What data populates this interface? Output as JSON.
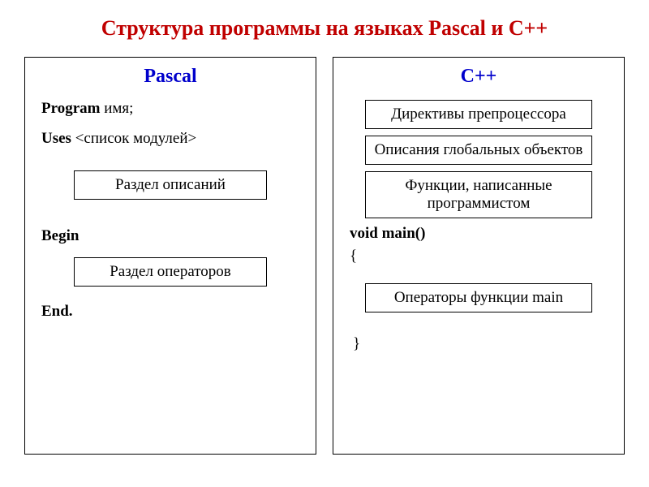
{
  "title": {
    "text": "Структура программы на языках Pascal и С++",
    "color": "#c00000"
  },
  "pascal": {
    "heading": "Pascal",
    "heading_color": "#0000cc",
    "line1_bold": "Program",
    "line1_rest": " имя;",
    "line2_bold": "Uses",
    "line2_rest": " <список модулей>",
    "box1": "Раздел описаний",
    "begin": "Begin",
    "box2": "Раздел операторов",
    "end": "End."
  },
  "cpp": {
    "heading": "С++",
    "heading_color": "#0000cc",
    "box1": "Директивы препроцессора",
    "box2": "Описания глобальных объектов",
    "box3": "Функции, написанные программистом",
    "voidmain": "void main()",
    "brace_open": "{",
    "box4": "Операторы функции main",
    "brace_close": "}"
  },
  "style": {
    "border_color": "#000000",
    "background": "#ffffff",
    "font_family": "Times New Roman",
    "title_fontsize": 26,
    "heading_fontsize": 24,
    "body_fontsize": 19
  }
}
